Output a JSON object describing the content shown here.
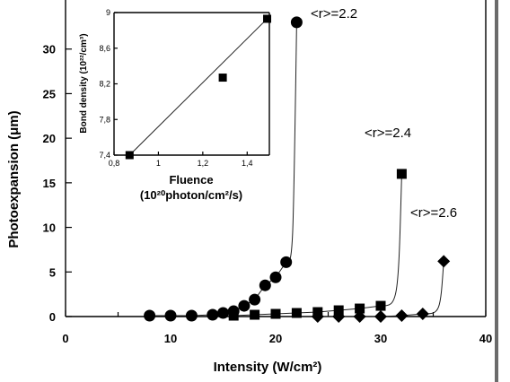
{
  "chart_data": [
    {
      "type": "scatter",
      "xlabel": "Intensity (W/cm²)",
      "ylabel": "Photoexpansion (μm)",
      "xlim": [
        0,
        40
      ],
      "ylim": [
        0,
        35
      ],
      "x_ticks": [
        "0",
        "10",
        "20",
        "30",
        "40"
      ],
      "y_ticks": [
        "0",
        "5",
        "10",
        "15",
        "20",
        "25",
        "30"
      ],
      "grid": false,
      "series": [
        {
          "name": "<r>=2.2",
          "marker": "circle",
          "points": [
            [
              8,
              0.1
            ],
            [
              10,
              0.1
            ],
            [
              12,
              0.1
            ],
            [
              14,
              0.2
            ],
            [
              15,
              0.4
            ],
            [
              16,
              0.6
            ],
            [
              17,
              1.2
            ],
            [
              18,
              1.9
            ],
            [
              19,
              3.5
            ],
            [
              20,
              4.4
            ],
            [
              21,
              6.1
            ],
            [
              22,
              33
            ]
          ]
        },
        {
          "name": "<r>=2.4",
          "marker": "square",
          "points": [
            [
              16,
              0.1
            ],
            [
              18,
              0.2
            ],
            [
              20,
              0.3
            ],
            [
              22,
              0.4
            ],
            [
              24,
              0.5
            ],
            [
              26,
              0.7
            ],
            [
              28,
              0.9
            ],
            [
              30,
              1.2
            ],
            [
              32,
              16
            ]
          ]
        },
        {
          "name": "<r>=2.6",
          "marker": "diamond",
          "points": [
            [
              24,
              0.0
            ],
            [
              26,
              0.0
            ],
            [
              28,
              0.0
            ],
            [
              30,
              0.0
            ],
            [
              32,
              0.1
            ],
            [
              34,
              0.3
            ],
            [
              36,
              6.2
            ]
          ]
        }
      ]
    },
    {
      "type": "scatter",
      "xlabel": "Fluence",
      "xlabel_unit": "(10²⁰photon/cm²/s)",
      "ylabel": "Bond density (10²²/cm³)",
      "xlim": [
        0.8,
        1.5
      ],
      "ylim": [
        7.4,
        9.0
      ],
      "x_ticks": [
        "0,8",
        "1",
        "1,2",
        "1,4"
      ],
      "y_ticks": [
        "7,4",
        "7,8",
        "8,2",
        "8,6",
        "9"
      ],
      "series": [
        {
          "marker": "square",
          "points": [
            [
              0.87,
              7.4
            ],
            [
              1.29,
              8.27
            ],
            [
              1.49,
              8.93
            ]
          ]
        }
      ],
      "fit_line": [
        [
          0.87,
          7.4
        ],
        [
          1.49,
          8.93
        ]
      ]
    }
  ]
}
